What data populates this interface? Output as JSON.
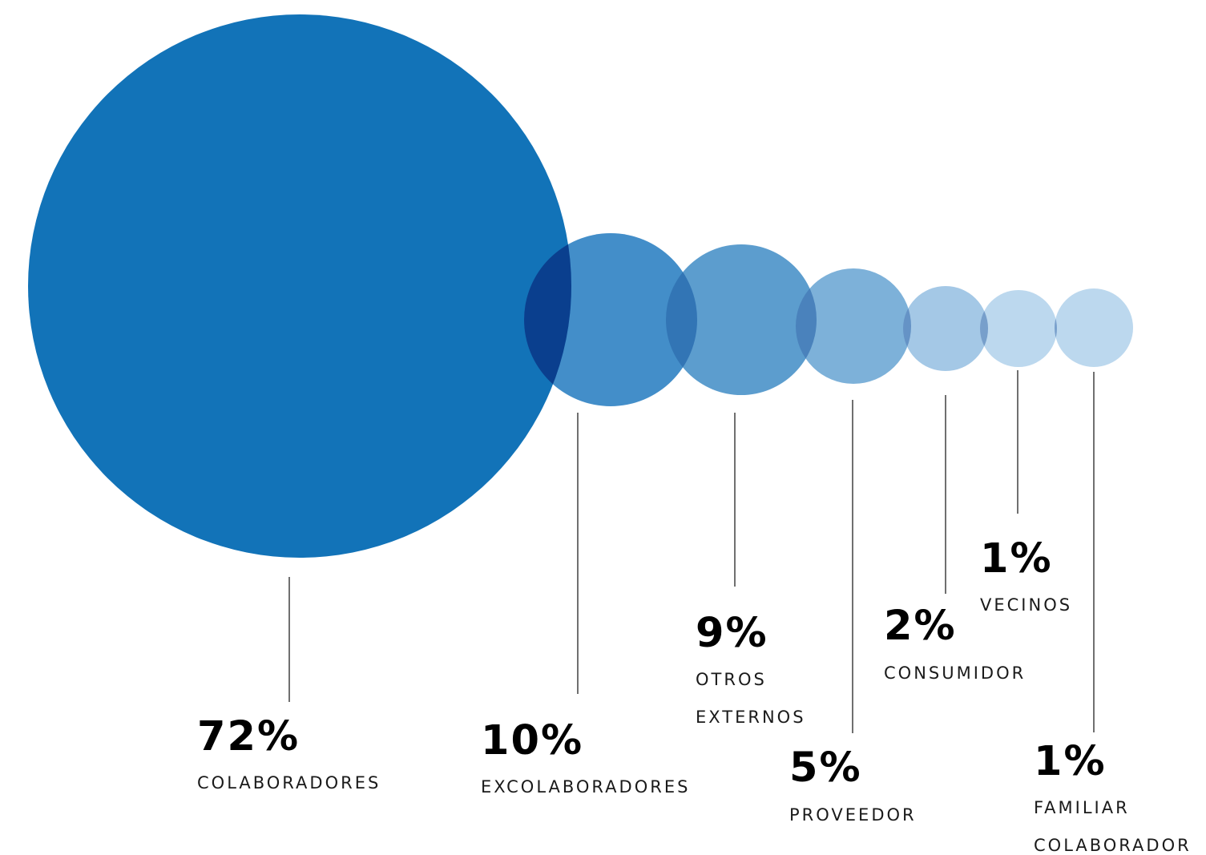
{
  "chart_data": {
    "type": "bubble",
    "title": "",
    "grid": false,
    "legend": "none",
    "series": [
      {
        "category_lines": [
          "COLABORADORES"
        ],
        "value": 72,
        "value_label": "72%",
        "color": "#1273B8"
      },
      {
        "category_lines": [
          "EXCOLABORADORES"
        ],
        "value": 10,
        "value_label": "10%",
        "color": "#2F82C3"
      },
      {
        "category_lines": [
          "OTROS",
          "EXTERNOS"
        ],
        "value": 9,
        "value_label": "9%",
        "color": "#4A92C9"
      },
      {
        "category_lines": [
          "PROVEEDOR"
        ],
        "value": 5,
        "value_label": "5%",
        "color": "#6FA9D5"
      },
      {
        "category_lines": [
          "CONSUMIDOR"
        ],
        "value": 2,
        "value_label": "2%",
        "color": "#9AC2E3"
      },
      {
        "category_lines": [
          "VECINOS"
        ],
        "value": 1,
        "value_label": "1%",
        "color": "#B5D4EC"
      },
      {
        "category_lines": [
          "FAMILIAR",
          "COLABORADOR"
        ],
        "value": 1,
        "value_label": "1%",
        "color": "#B5D4EC"
      }
    ],
    "overlap_color": "#0A3F8E"
  }
}
